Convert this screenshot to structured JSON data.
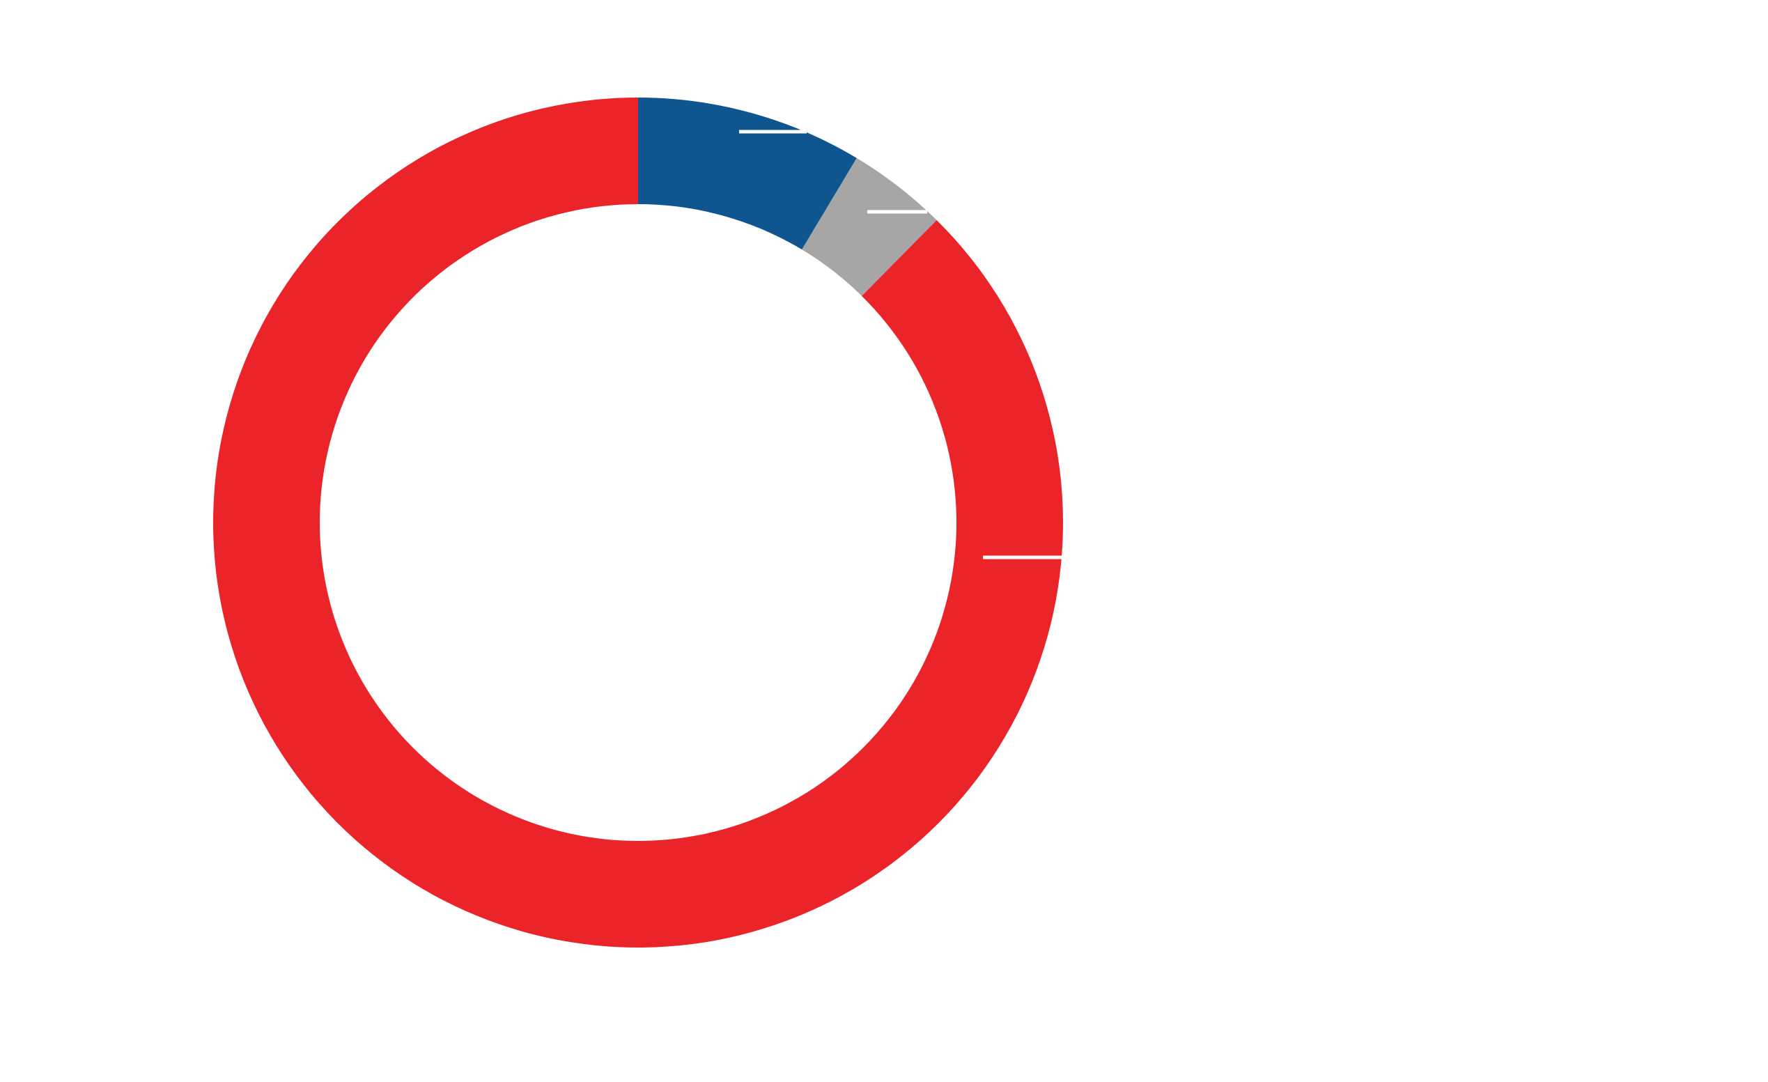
{
  "chart_data": {
    "type": "donut",
    "categories": [
      null,
      null,
      null
    ],
    "values": [
      8.6,
      3.8,
      87.6
    ],
    "colors": [
      "#0f5690",
      "#a6a6a6",
      "#ea2428"
    ]
  }
}
